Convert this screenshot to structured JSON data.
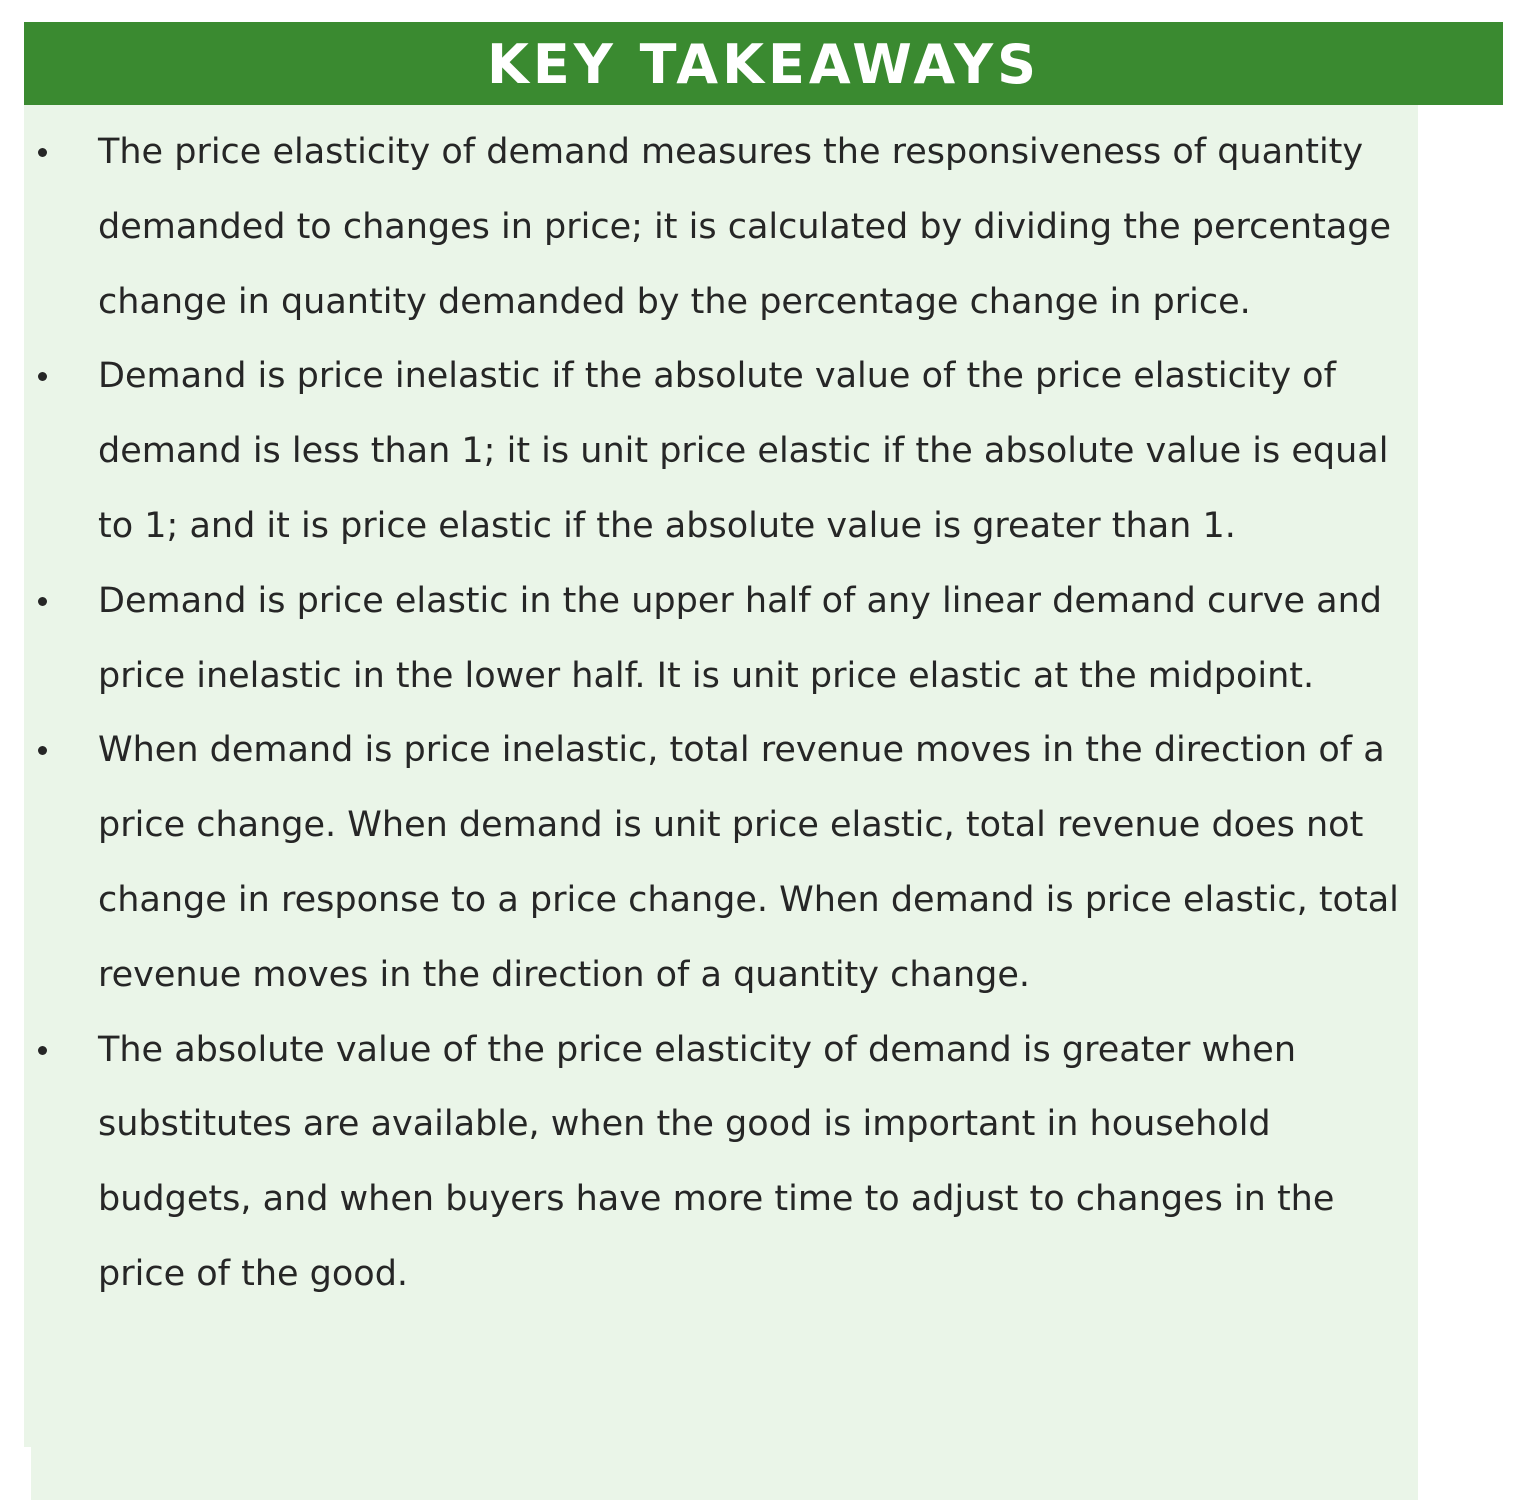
{
  "header": {
    "title": "KEY TAKEAWAYS"
  },
  "colors": {
    "header_background": "#3a8a30",
    "panel_background": "#eaf5e8",
    "text": "#262626"
  },
  "takeaways": [
    {
      "text": "The price elasticity of demand measures the responsiveness of quantity demanded to changes in price; it is calculated by dividing the percentage change in quantity demanded by the percentage change in price."
    },
    {
      "text": "Demand is price inelastic if the absolute value of the price elasticity of demand is less than 1; it is unit price elastic if the absolute value is equal to 1; and it is price elastic if the absolute value is greater than 1."
    },
    {
      "text": "Demand is price elastic in the upper half of any linear demand curve and price inelastic in the lower half. It is unit price elastic at the midpoint."
    },
    {
      "text": "When demand is price inelastic, total revenue moves in the direction of a price change. When demand is unit price elastic, total revenue does not change in response to a price change. When demand is price elastic, total revenue moves in the direction of a quantity change."
    },
    {
      "text": "The absolute value of the price elasticity of demand is greater when substitutes are available, when the good is important in household budgets, and when buyers have more time to adjust to changes in the price of the good."
    }
  ]
}
